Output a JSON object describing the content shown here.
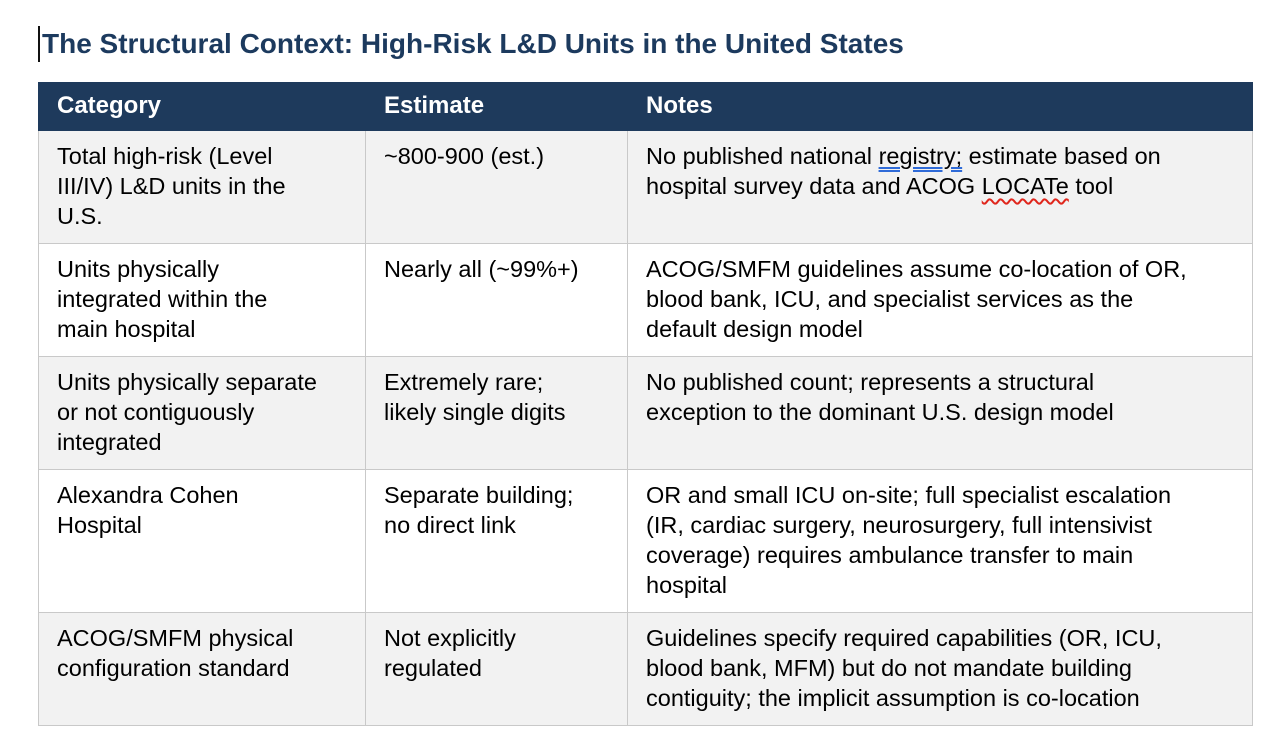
{
  "title": "The Structural Context: High-Risk L&D Units in the United States",
  "colors": {
    "title_color": "#1c3a5e",
    "header_bg": "#1e3a5c",
    "header_text": "#ffffff",
    "row_alt_bg": "#f2f2f2",
    "border_color": "#c9c9c9",
    "grammar_color": "#2f6bd8",
    "spell_color": "#e0261c"
  },
  "table": {
    "headers": [
      "Category",
      "Estimate",
      "Notes"
    ],
    "rows": [
      {
        "category": "Total high-risk (Level\nIII/IV) L&D units in the\nU.S.",
        "estimate": "~800-900 (est.)",
        "notes": [
          {
            "text": "No published national ",
            "mark": "none"
          },
          {
            "text": "registry;",
            "mark": "grammar"
          },
          {
            "text": " estimate based on\nhospital survey data and ACOG ",
            "mark": "none"
          },
          {
            "text": "LOCATe",
            "mark": "spell"
          },
          {
            "text": " tool",
            "mark": "none"
          }
        ]
      },
      {
        "category": "Units physically\nintegrated within the\nmain hospital",
        "estimate": "Nearly all (~99%+)",
        "notes": [
          {
            "text": "ACOG/SMFM guidelines assume co-location of OR,\nblood bank, ICU, and specialist services as the\ndefault design model",
            "mark": "none"
          }
        ]
      },
      {
        "category": "Units physically separate\nor not contiguously\nintegrated",
        "estimate": "Extremely rare;\nlikely single digits",
        "notes": [
          {
            "text": "No published count; represents a structural\nexception to the dominant U.S. design model",
            "mark": "none"
          }
        ]
      },
      {
        "category": "Alexandra Cohen\nHospital",
        "estimate": "Separate building;\nno direct link",
        "notes": [
          {
            "text": "OR and small ICU on-site; full specialist escalation\n(IR, cardiac surgery, neurosurgery, full intensivist\ncoverage) requires ambulance transfer to main\nhospital",
            "mark": "none"
          }
        ]
      },
      {
        "category": "ACOG/SMFM physical\nconfiguration standard",
        "estimate": "Not explicitly\nregulated",
        "notes": [
          {
            "text": "Guidelines specify required capabilities (OR, ICU,\nblood bank, MFM) but do not mandate building\ncontiguity; the implicit assumption is co-location",
            "mark": "none"
          }
        ]
      }
    ]
  }
}
